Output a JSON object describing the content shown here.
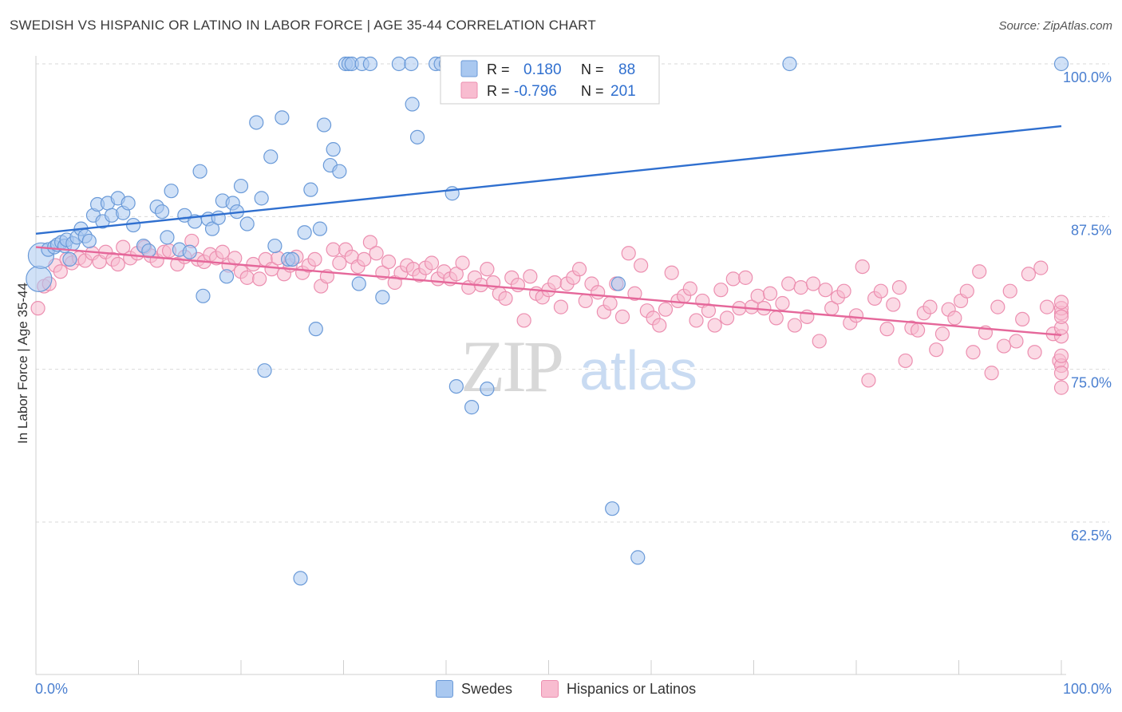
{
  "header": {
    "title": "SWEDISH VS HISPANIC OR LATINO IN LABOR FORCE | AGE 35-44 CORRELATION CHART",
    "source": "Source: ZipAtlas.com"
  },
  "watermark": {
    "zip": "ZIP",
    "atlas": "atlas"
  },
  "legend_stats": {
    "swedes": {
      "r_label": "R =",
      "r_value": "0.180",
      "n_label": "N =",
      "n_value": "88"
    },
    "hispanics": {
      "r_label": "R =",
      "r_value": "-0.796",
      "n_label": "N =",
      "n_value": "201"
    }
  },
  "colors": {
    "swedes_fill": "#a9c8f0",
    "swedes_stroke": "#6a9ad8",
    "swedes_line": "#2f6fcf",
    "hisp_fill": "#f8bcd0",
    "hisp_stroke": "#ec8fb0",
    "hisp_line": "#e5679a",
    "tick_label": "#4a7fd0",
    "grid": "#d9d9d9"
  },
  "chart_data": {
    "type": "scatter",
    "title": "SWEDISH VS HISPANIC OR LATINO IN LABOR FORCE | AGE 35-44 CORRELATION CHART",
    "xlabel": "",
    "ylabel": "In Labor Force | Age 35-44",
    "xlim": [
      0,
      100
    ],
    "ylim": [
      50,
      101
    ],
    "x_tick_labels": [
      "0.0%",
      "100.0%"
    ],
    "y_ticks": [
      62.5,
      75.0,
      87.5,
      100.0
    ],
    "y_tick_labels": [
      "62.5%",
      "75.0%",
      "87.5%",
      "100.0%"
    ],
    "grid": true,
    "legend_position": "top-center",
    "series": [
      {
        "name": "Swedes",
        "r": 0.18,
        "n": 88,
        "trend": {
          "x": [
            0,
            100
          ],
          "y": [
            86.1,
            94.9
          ]
        },
        "points": [
          [
            0.3,
            82.4
          ],
          [
            0.5,
            84.3
          ],
          [
            1.2,
            84.8
          ],
          [
            1.8,
            85.0
          ],
          [
            2.1,
            85.2
          ],
          [
            2.5,
            85.4
          ],
          [
            2.8,
            85.1
          ],
          [
            3.0,
            85.6
          ],
          [
            3.3,
            84.0
          ],
          [
            3.6,
            85.3
          ],
          [
            4.0,
            85.8
          ],
          [
            4.4,
            86.5
          ],
          [
            4.8,
            85.9
          ],
          [
            5.2,
            85.5
          ],
          [
            5.6,
            87.6
          ],
          [
            6.0,
            88.5
          ],
          [
            6.5,
            87.1
          ],
          [
            7.0,
            88.6
          ],
          [
            7.4,
            87.6
          ],
          [
            8.0,
            89.0
          ],
          [
            8.5,
            87.8
          ],
          [
            9.0,
            88.6
          ],
          [
            9.5,
            86.8
          ],
          [
            10.5,
            85.1
          ],
          [
            11.0,
            84.7
          ],
          [
            11.8,
            88.3
          ],
          [
            12.3,
            87.9
          ],
          [
            12.8,
            85.8
          ],
          [
            13.2,
            89.6
          ],
          [
            14.0,
            84.8
          ],
          [
            14.5,
            87.6
          ],
          [
            15.0,
            84.6
          ],
          [
            15.5,
            87.1
          ],
          [
            16.0,
            91.2
          ],
          [
            16.3,
            81.0
          ],
          [
            16.8,
            87.3
          ],
          [
            17.2,
            86.5
          ],
          [
            17.8,
            87.4
          ],
          [
            18.2,
            88.8
          ],
          [
            18.6,
            82.6
          ],
          [
            19.2,
            88.6
          ],
          [
            19.6,
            87.9
          ],
          [
            20.0,
            90.0
          ],
          [
            20.6,
            86.9
          ],
          [
            21.5,
            95.2
          ],
          [
            22.0,
            89.0
          ],
          [
            22.3,
            74.9
          ],
          [
            22.9,
            92.4
          ],
          [
            23.3,
            85.1
          ],
          [
            24.0,
            95.6
          ],
          [
            24.6,
            84.0
          ],
          [
            25.0,
            84.0
          ],
          [
            25.8,
            57.9
          ],
          [
            26.2,
            86.2
          ],
          [
            26.8,
            89.7
          ],
          [
            27.3,
            78.3
          ],
          [
            27.7,
            86.5
          ],
          [
            28.1,
            95.0
          ],
          [
            28.7,
            91.7
          ],
          [
            29.0,
            93.0
          ],
          [
            29.6,
            91.2
          ],
          [
            30.2,
            100.0
          ],
          [
            30.5,
            100.0
          ],
          [
            30.8,
            100.0
          ],
          [
            31.8,
            100.0
          ],
          [
            31.5,
            82.0
          ],
          [
            32.6,
            100.0
          ],
          [
            33.8,
            80.9
          ],
          [
            35.4,
            100.0
          ],
          [
            36.6,
            100.0
          ],
          [
            36.7,
            96.7
          ],
          [
            37.2,
            94.0
          ],
          [
            39.0,
            100.0
          ],
          [
            39.5,
            100.0
          ],
          [
            40.0,
            100.0
          ],
          [
            40.6,
            89.4
          ],
          [
            41.0,
            73.6
          ],
          [
            42.5,
            71.9
          ],
          [
            42.8,
            100.0
          ],
          [
            44.0,
            100.0
          ],
          [
            44.0,
            73.4
          ],
          [
            47.2,
            100.0
          ],
          [
            48.0,
            100.0
          ],
          [
            56.2,
            63.6
          ],
          [
            56.8,
            82.0
          ],
          [
            58.7,
            59.6
          ],
          [
            73.5,
            100.0
          ],
          [
            100.0,
            100.0
          ]
        ]
      },
      {
        "name": "Hispanics or Latinos",
        "r": -0.796,
        "n": 201,
        "trend": {
          "x": [
            0,
            100
          ],
          "y": [
            85.0,
            77.8
          ]
        },
        "points": [
          [
            0.2,
            80.0
          ],
          [
            0.8,
            81.8
          ],
          [
            1.3,
            82.0
          ],
          [
            1.9,
            83.5
          ],
          [
            2.4,
            83.0
          ],
          [
            3.0,
            84.0
          ],
          [
            3.5,
            83.7
          ],
          [
            4.2,
            84.1
          ],
          [
            4.8,
            83.9
          ],
          [
            5.5,
            84.5
          ],
          [
            6.2,
            83.8
          ],
          [
            6.8,
            84.6
          ],
          [
            7.5,
            84.0
          ],
          [
            8.0,
            83.6
          ],
          [
            8.5,
            85.0
          ],
          [
            9.2,
            84.1
          ],
          [
            9.9,
            84.5
          ],
          [
            10.6,
            85.0
          ],
          [
            11.2,
            84.3
          ],
          [
            11.8,
            83.9
          ],
          [
            12.5,
            84.6
          ],
          [
            13.0,
            84.7
          ],
          [
            13.8,
            83.6
          ],
          [
            14.5,
            84.2
          ],
          [
            15.2,
            85.5
          ],
          [
            15.8,
            84.0
          ],
          [
            16.4,
            83.8
          ],
          [
            17.0,
            84.4
          ],
          [
            17.6,
            84.1
          ],
          [
            18.2,
            84.6
          ],
          [
            18.8,
            83.5
          ],
          [
            19.4,
            84.1
          ],
          [
            20.0,
            83.0
          ],
          [
            20.6,
            82.5
          ],
          [
            21.2,
            83.6
          ],
          [
            21.8,
            82.4
          ],
          [
            22.4,
            84.0
          ],
          [
            23.0,
            83.2
          ],
          [
            23.6,
            84.1
          ],
          [
            24.2,
            82.8
          ],
          [
            24.8,
            83.5
          ],
          [
            25.4,
            84.2
          ],
          [
            26.0,
            82.9
          ],
          [
            26.6,
            83.5
          ],
          [
            27.2,
            84.0
          ],
          [
            27.8,
            81.8
          ],
          [
            28.4,
            82.6
          ],
          [
            29.0,
            84.8
          ],
          [
            29.6,
            83.7
          ],
          [
            30.2,
            84.8
          ],
          [
            30.8,
            84.2
          ],
          [
            31.4,
            83.4
          ],
          [
            32.0,
            84.0
          ],
          [
            32.6,
            85.4
          ],
          [
            33.2,
            84.5
          ],
          [
            33.8,
            82.9
          ],
          [
            34.4,
            83.8
          ],
          [
            35.0,
            82.1
          ],
          [
            35.6,
            82.9
          ],
          [
            36.2,
            83.5
          ],
          [
            36.8,
            83.2
          ],
          [
            37.4,
            82.7
          ],
          [
            38.0,
            83.3
          ],
          [
            38.6,
            83.7
          ],
          [
            39.2,
            82.4
          ],
          [
            39.8,
            83.0
          ],
          [
            40.4,
            82.4
          ],
          [
            41.0,
            82.8
          ],
          [
            41.6,
            83.7
          ],
          [
            42.2,
            81.7
          ],
          [
            42.8,
            82.5
          ],
          [
            43.4,
            81.9
          ],
          [
            44.0,
            83.2
          ],
          [
            44.6,
            82.1
          ],
          [
            45.2,
            81.2
          ],
          [
            45.8,
            80.8
          ],
          [
            46.4,
            82.5
          ],
          [
            47.0,
            81.9
          ],
          [
            47.6,
            79.0
          ],
          [
            48.2,
            82.6
          ],
          [
            48.8,
            81.2
          ],
          [
            49.4,
            80.9
          ],
          [
            50.0,
            81.5
          ],
          [
            50.6,
            82.1
          ],
          [
            51.2,
            80.1
          ],
          [
            51.8,
            82.0
          ],
          [
            52.4,
            82.5
          ],
          [
            53.0,
            83.2
          ],
          [
            53.6,
            80.6
          ],
          [
            54.2,
            82.0
          ],
          [
            54.8,
            81.3
          ],
          [
            55.4,
            79.7
          ],
          [
            56.0,
            80.4
          ],
          [
            56.6,
            82.0
          ],
          [
            57.2,
            79.3
          ],
          [
            57.8,
            84.5
          ],
          [
            58.4,
            81.2
          ],
          [
            59.0,
            83.5
          ],
          [
            59.6,
            79.8
          ],
          [
            60.2,
            79.2
          ],
          [
            60.8,
            78.6
          ],
          [
            61.4,
            79.9
          ],
          [
            62.0,
            82.9
          ],
          [
            62.6,
            80.6
          ],
          [
            63.2,
            81.0
          ],
          [
            63.8,
            81.6
          ],
          [
            64.4,
            79.0
          ],
          [
            65.0,
            80.6
          ],
          [
            65.6,
            79.8
          ],
          [
            66.2,
            78.6
          ],
          [
            66.8,
            81.5
          ],
          [
            67.4,
            79.2
          ],
          [
            68.0,
            82.4
          ],
          [
            68.6,
            80.0
          ],
          [
            69.2,
            82.5
          ],
          [
            69.8,
            80.1
          ],
          [
            70.4,
            81.0
          ],
          [
            71.0,
            80.0
          ],
          [
            71.6,
            81.2
          ],
          [
            72.2,
            79.2
          ],
          [
            72.8,
            80.4
          ],
          [
            73.4,
            82.0
          ],
          [
            74.0,
            78.6
          ],
          [
            74.6,
            81.7
          ],
          [
            75.2,
            79.3
          ],
          [
            75.8,
            82.0
          ],
          [
            76.4,
            77.3
          ],
          [
            77.0,
            81.5
          ],
          [
            77.6,
            80.0
          ],
          [
            78.2,
            80.9
          ],
          [
            78.8,
            81.4
          ],
          [
            79.4,
            78.8
          ],
          [
            80.0,
            79.4
          ],
          [
            80.6,
            83.4
          ],
          [
            81.2,
            74.1
          ],
          [
            81.8,
            80.8
          ],
          [
            82.4,
            81.4
          ],
          [
            83.0,
            78.3
          ],
          [
            83.6,
            80.3
          ],
          [
            84.2,
            81.7
          ],
          [
            84.8,
            75.7
          ],
          [
            85.4,
            78.4
          ],
          [
            86.0,
            78.2
          ],
          [
            86.6,
            79.6
          ],
          [
            87.2,
            80.1
          ],
          [
            87.8,
            76.6
          ],
          [
            88.4,
            77.9
          ],
          [
            89.0,
            79.9
          ],
          [
            89.6,
            79.2
          ],
          [
            90.2,
            80.6
          ],
          [
            90.8,
            81.4
          ],
          [
            91.4,
            76.4
          ],
          [
            92.0,
            83.0
          ],
          [
            92.6,
            78.0
          ],
          [
            93.2,
            74.7
          ],
          [
            93.8,
            80.1
          ],
          [
            94.4,
            76.9
          ],
          [
            95.0,
            81.4
          ],
          [
            95.6,
            77.3
          ],
          [
            96.2,
            79.1
          ],
          [
            96.8,
            82.8
          ],
          [
            97.4,
            76.4
          ],
          [
            98.0,
            83.3
          ],
          [
            98.6,
            80.1
          ],
          [
            99.2,
            77.9
          ],
          [
            99.8,
            75.7
          ],
          [
            100.0,
            79.6
          ],
          [
            100.0,
            75.3
          ],
          [
            100.0,
            77.7
          ],
          [
            100.0,
            80.0
          ],
          [
            100.0,
            76.1
          ],
          [
            100.0,
            78.4
          ],
          [
            100.0,
            73.5
          ],
          [
            100.0,
            74.7
          ],
          [
            100.0,
            79.3
          ],
          [
            100.0,
            80.5
          ]
        ]
      }
    ]
  },
  "bottom_legend": [
    {
      "label": "Swedes"
    },
    {
      "label": "Hispanics or Latinos"
    }
  ]
}
